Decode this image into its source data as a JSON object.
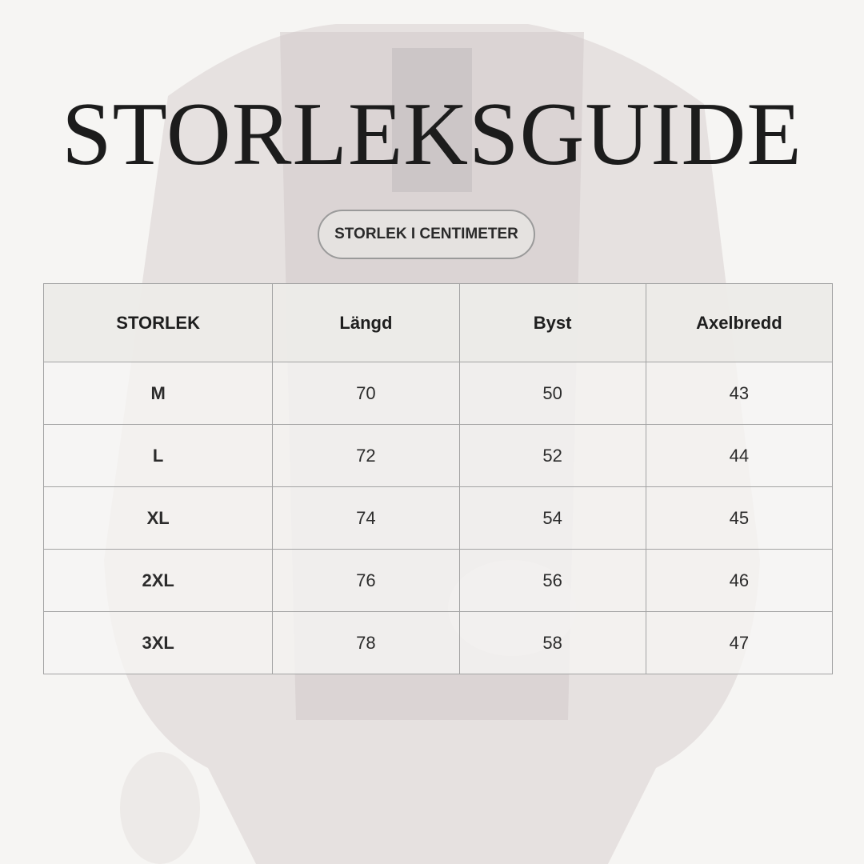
{
  "title": "STORLEKSGUIDE",
  "unit_badge": "STORLEK I CENTIMETER",
  "table": {
    "headers": [
      "STORLEK",
      "Längd",
      "Byst",
      "Axelbredd"
    ],
    "rows": [
      [
        "M",
        "70",
        "50",
        "43"
      ],
      [
        "L",
        "72",
        "52",
        "44"
      ],
      [
        "XL",
        "74",
        "54",
        "45"
      ],
      [
        "2XL",
        "76",
        "56",
        "46"
      ],
      [
        "3XL",
        "78",
        "58",
        "47"
      ]
    ]
  }
}
